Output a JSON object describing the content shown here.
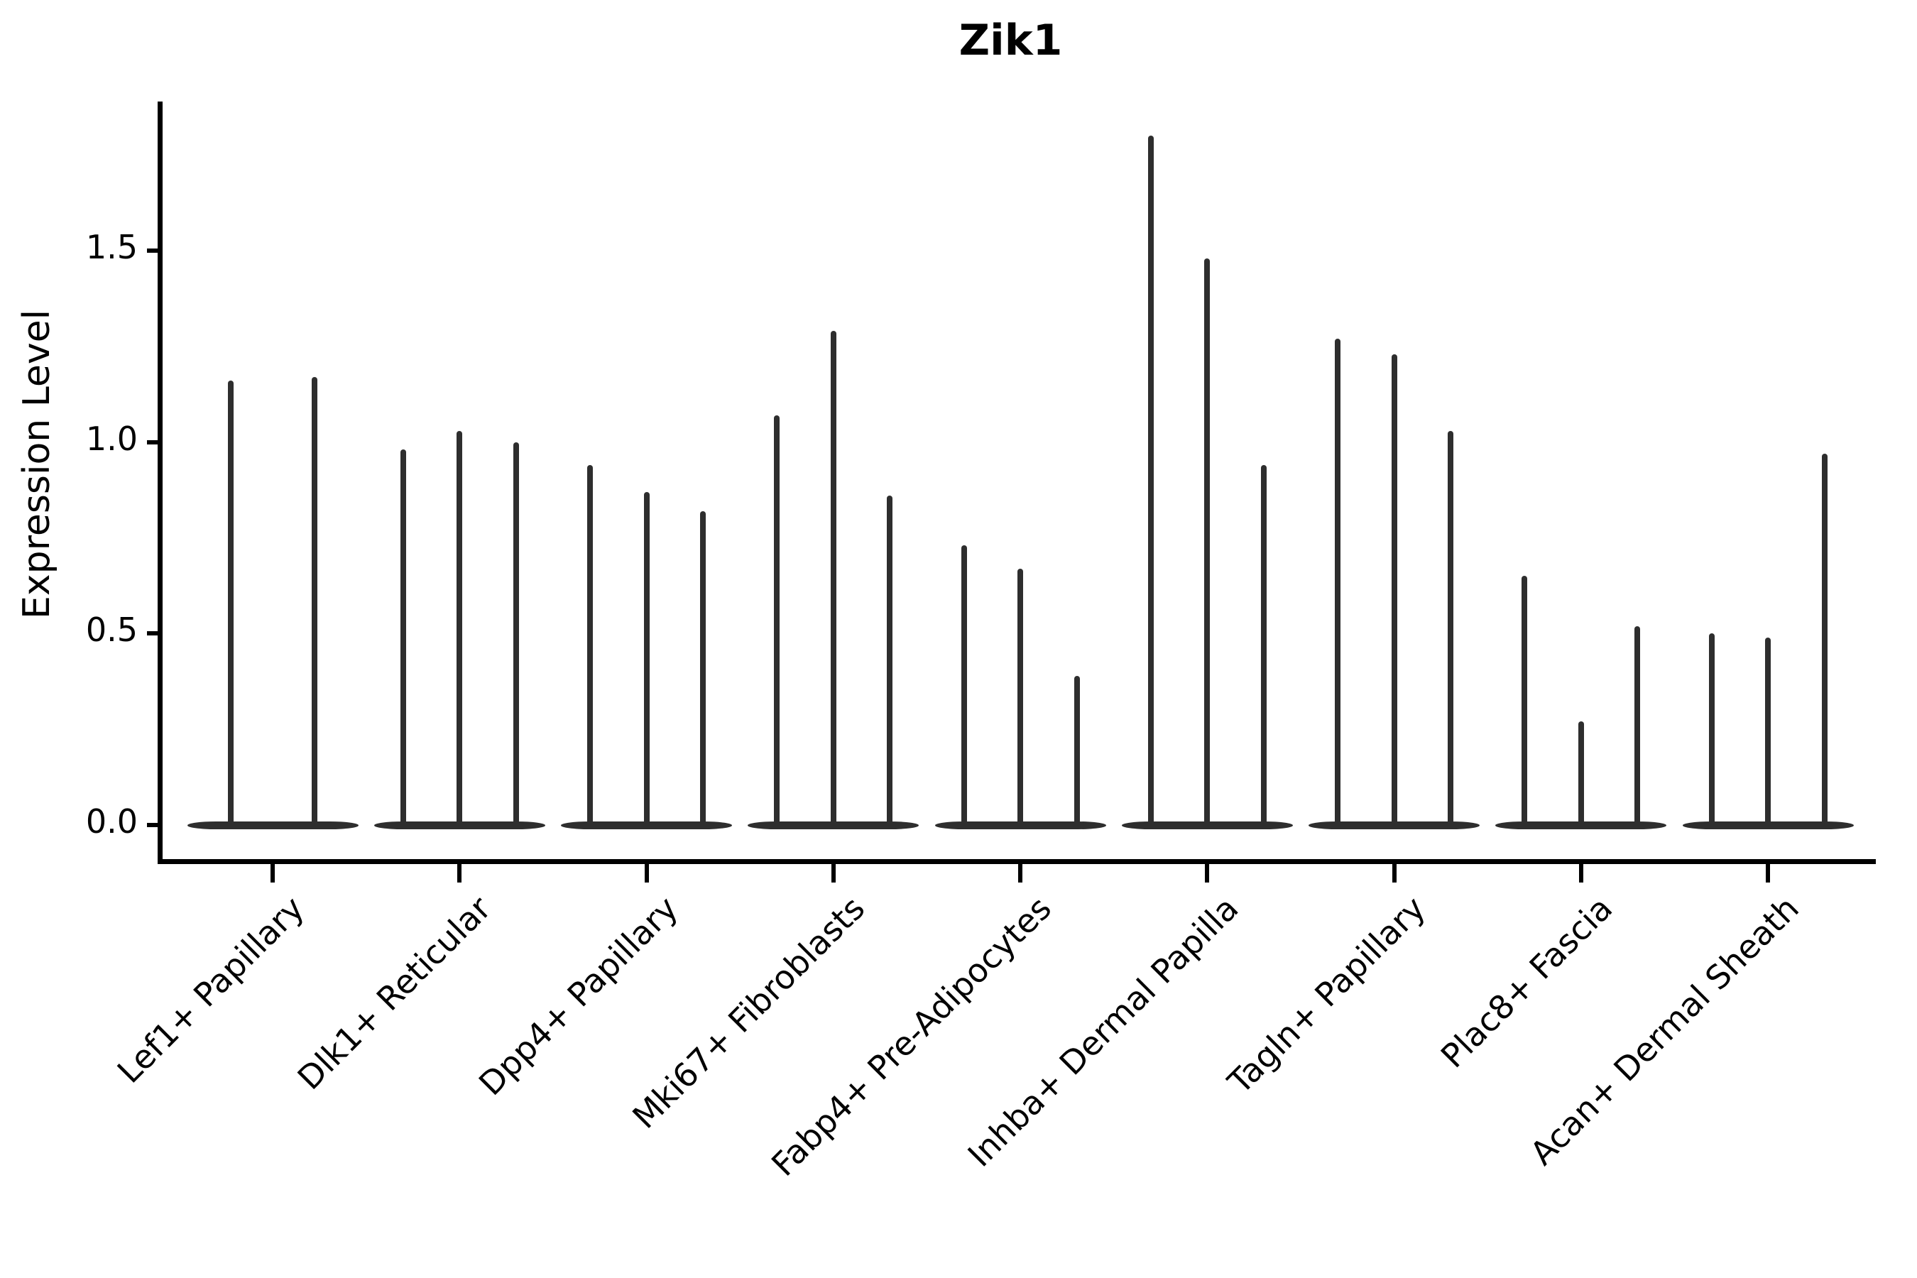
{
  "chart_data": {
    "type": "violin",
    "title": "Zik1",
    "ylabel": "Expression Level",
    "xlabel": "",
    "ylim": [
      0,
      1.91
    ],
    "yticks": [
      0.0,
      0.5,
      1.0,
      1.5
    ],
    "grid": false,
    "legend": null,
    "baseline_value": 0.0,
    "categories": [
      "Lef1+ Papillary",
      "Dlk1+ Reticular",
      "Dpp4+ Papillary",
      "Mki67+ Fibroblasts",
      "Fabp4+ Pre-Adipocytes",
      "Inhba+ Dermal Papilla",
      "Tagln+ Papillary",
      "Plac8+ Fascia",
      "Acan+ Dermal Sheath"
    ],
    "groups": [
      {
        "category": "Lef1+ Papillary",
        "violin_peaks": [
          1.16,
          1.17
        ]
      },
      {
        "category": "Dlk1+ Reticular",
        "violin_peaks": [
          0.98,
          1.03,
          1.0
        ]
      },
      {
        "category": "Dpp4+ Papillary",
        "violin_peaks": [
          0.94,
          0.87,
          0.82
        ]
      },
      {
        "category": "Mki67+ Fibroblasts",
        "violin_peaks": [
          1.07,
          1.29,
          0.86
        ]
      },
      {
        "category": "Fabp4+ Pre-Adipocytes",
        "violin_peaks": [
          0.73,
          0.67,
          0.39
        ]
      },
      {
        "category": "Inhba+ Dermal Papilla",
        "violin_peaks": [
          1.8,
          1.48,
          0.94
        ]
      },
      {
        "category": "Tagln+ Papillary",
        "violin_peaks": [
          1.27,
          1.23,
          1.03
        ]
      },
      {
        "category": "Plac8+ Fascia",
        "violin_peaks": [
          0.65,
          0.27,
          0.52
        ]
      },
      {
        "category": "Acan+ Dermal Sheath",
        "violin_peaks": [
          0.5,
          0.49,
          0.97
        ]
      }
    ],
    "colors": {
      "violin": "#2e2e2e",
      "axis": "#000000",
      "text": "#000000",
      "background": "#ffffff"
    }
  }
}
